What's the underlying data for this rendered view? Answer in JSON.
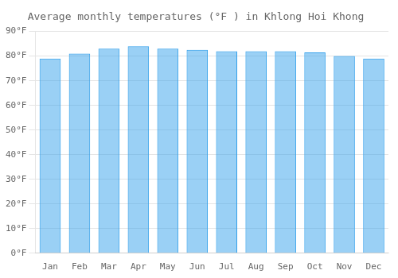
{
  "chart_data": {
    "type": "bar",
    "title": "Average monthly temperatures (°F ) in Khlong Hoi Khong",
    "categories": [
      "Jan",
      "Feb",
      "Mar",
      "Apr",
      "May",
      "Jun",
      "Jul",
      "Aug",
      "Sep",
      "Oct",
      "Nov",
      "Dec"
    ],
    "values": [
      79,
      81,
      83,
      84,
      83,
      82.5,
      82,
      82,
      82,
      81.5,
      80,
      79
    ],
    "ylim": [
      0,
      90
    ],
    "yticks": [
      {
        "value": 0,
        "label": "0°F"
      },
      {
        "value": 10,
        "label": "10°F"
      },
      {
        "value": 20,
        "label": "20°F"
      },
      {
        "value": 30,
        "label": "30°F"
      },
      {
        "value": 40,
        "label": "40°F"
      },
      {
        "value": 50,
        "label": "50°F"
      },
      {
        "value": 60,
        "label": "60°F"
      },
      {
        "value": 70,
        "label": "70°F"
      },
      {
        "value": 80,
        "label": "80°F"
      },
      {
        "value": 90,
        "label": "90°F"
      }
    ],
    "grid": true
  }
}
